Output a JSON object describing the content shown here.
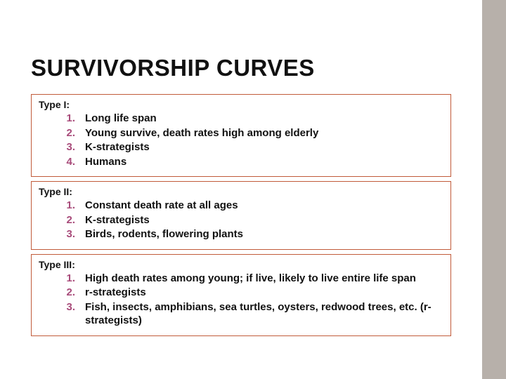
{
  "title": "SURVIVORSHIP CURVES",
  "border_color": "#c15b3a",
  "number_color": "#a84b7a",
  "sidebar_color": "#b7b0aa",
  "sections": [
    {
      "label": "Type I:",
      "items": [
        {
          "n": "1.",
          "text": "Long life span"
        },
        {
          "n": "2.",
          "text": "Young survive, death rates high among elderly"
        },
        {
          "n": "3.",
          "text": "K-strategists"
        },
        {
          "n": "4.",
          "text": "Humans"
        }
      ]
    },
    {
      "label": "Type II:",
      "items": [
        {
          "n": "1.",
          "text": "Constant death rate at all ages"
        },
        {
          "n": "2.",
          "text": "K-strategists"
        },
        {
          "n": "3.",
          "text": "Birds, rodents, flowering plants"
        }
      ]
    },
    {
      "label": "Type III:",
      "items": [
        {
          "n": "1.",
          "text": "High death rates among young; if live, likely to live entire life span"
        },
        {
          "n": "2.",
          "text": "r-strategists"
        },
        {
          "n": "3.",
          "text": "Fish, insects, amphibians, sea turtles, oysters, redwood trees, etc. (r-strategists)"
        }
      ]
    }
  ]
}
